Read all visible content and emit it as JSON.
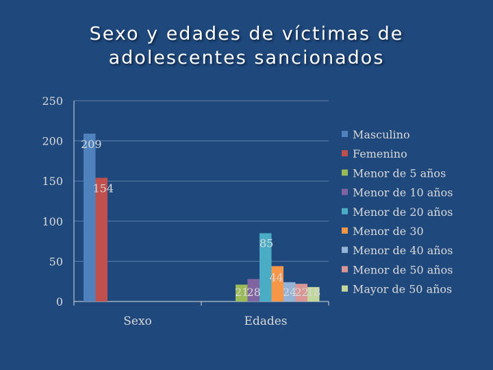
{
  "slide": {
    "title_line1": "Sexo y edades de víctimas de",
    "title_line2": "adolescentes sancionados"
  },
  "chart_data": {
    "type": "bar",
    "categories": [
      "Sexo",
      "Edades"
    ],
    "ylim": [
      0,
      250
    ],
    "yticks": [
      0,
      50,
      100,
      150,
      200,
      250
    ],
    "grid": true,
    "legend": "right",
    "series": [
      {
        "name": "Masculino",
        "color": "#4f81bd",
        "values": [
          209,
          null
        ]
      },
      {
        "name": "Femenino",
        "color": "#c0504d",
        "values": [
          154,
          null
        ]
      },
      {
        "name": "Menor de 5 años",
        "color": "#9bbb59",
        "values": [
          null,
          21
        ]
      },
      {
        "name": "Menor de 10 años",
        "color": "#8064a2",
        "values": [
          null,
          28
        ]
      },
      {
        "name": "Menor de 20 años",
        "color": "#4bacc6",
        "values": [
          null,
          85
        ]
      },
      {
        "name": "Menor de 30",
        "color": "#f79646",
        "values": [
          null,
          44
        ]
      },
      {
        "name": "Menor de 40 años",
        "color": "#95b3d7",
        "values": [
          null,
          24
        ]
      },
      {
        "name": "Menor de 50 años",
        "color": "#d99694",
        "values": [
          null,
          22
        ]
      },
      {
        "name": "Mayor de 50 años",
        "color": "#c3d69b",
        "values": [
          null,
          18
        ]
      }
    ],
    "label_color": "#d9d9d9",
    "axis_color": "#d9d9d9"
  }
}
